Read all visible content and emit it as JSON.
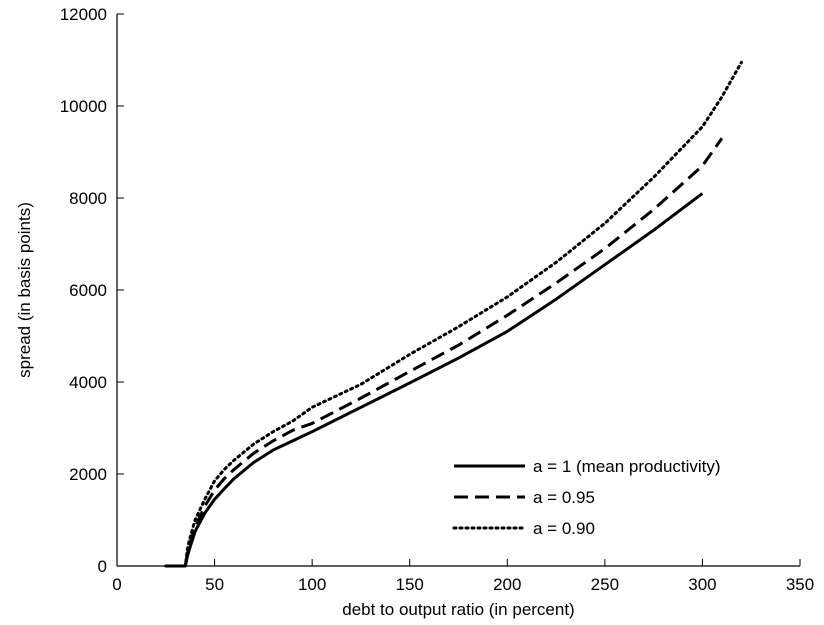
{
  "chart_data": {
    "type": "line",
    "title": "",
    "xlabel": "debt to output ratio (in percent)",
    "ylabel": "spread (in basis points)",
    "xlim": [
      0,
      350
    ],
    "ylim": [
      0,
      12000
    ],
    "xticks": [
      0,
      50,
      100,
      150,
      200,
      250,
      300,
      350
    ],
    "yticks": [
      0,
      2000,
      4000,
      6000,
      8000,
      10000,
      12000
    ],
    "grid": false,
    "legend_position": "lower-right",
    "series": [
      {
        "name": "a = 1 (mean productivity)",
        "style": "solid",
        "color": "#000000",
        "x": [
          25,
          35,
          36,
          37,
          40,
          45,
          50,
          55,
          60,
          70,
          80,
          90,
          100,
          125,
          150,
          175,
          200,
          225,
          250,
          275,
          300
        ],
        "y": [
          0,
          0,
          200,
          350,
          750,
          1150,
          1450,
          1680,
          1900,
          2250,
          2520,
          2720,
          2920,
          3450,
          3980,
          4520,
          5100,
          5800,
          6550,
          7300,
          8100
        ]
      },
      {
        "name": "a = 0.95",
        "style": "dashed",
        "color": "#000000",
        "x": [
          25,
          35,
          36,
          37,
          40,
          45,
          50,
          55,
          60,
          70,
          80,
          90,
          100,
          125,
          150,
          175,
          200,
          225,
          250,
          275,
          300,
          310
        ],
        "y": [
          0,
          0,
          250,
          450,
          850,
          1300,
          1650,
          1900,
          2100,
          2450,
          2720,
          2950,
          3100,
          3650,
          4230,
          4800,
          5450,
          6150,
          6900,
          7750,
          8700,
          9300
        ]
      },
      {
        "name": "a = 0.90",
        "style": "dotted",
        "color": "#000000",
        "x": [
          25,
          35,
          36,
          37,
          40,
          45,
          50,
          55,
          60,
          70,
          80,
          90,
          100,
          125,
          150,
          175,
          200,
          225,
          250,
          275,
          300,
          310,
          320
        ],
        "y": [
          0,
          0,
          350,
          550,
          1000,
          1450,
          1850,
          2100,
          2300,
          2650,
          2920,
          3150,
          3450,
          3950,
          4600,
          5200,
          5850,
          6600,
          7450,
          8450,
          9550,
          10200,
          10950
        ]
      }
    ]
  }
}
